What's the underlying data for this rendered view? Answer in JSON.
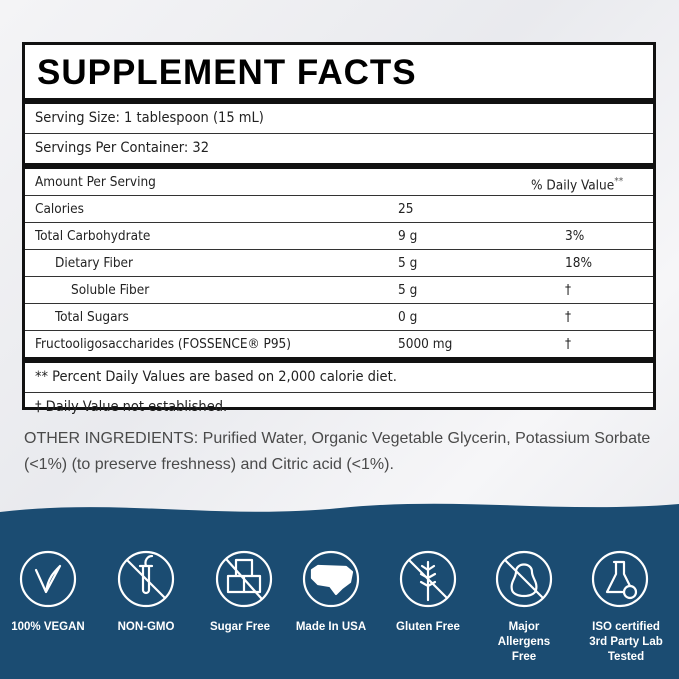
{
  "facts": {
    "title": "SUPPLEMENT FACTS",
    "serving_size": "Serving Size: 1 tablespoon (15 mL)",
    "servings_per_container": "Servings Per Container: 32",
    "amount_header": "Amount Per Serving",
    "dv_header": "% Daily Value",
    "dv_header_mark": "**",
    "rows": [
      {
        "name": "Calories",
        "amount": "25"
      },
      {
        "name": "Total Carbohydrate",
        "amount": "9 g",
        "dv": "3%"
      },
      {
        "name": "Dietary Fiber",
        "amount": "5 g",
        "dv": "18%"
      },
      {
        "name": "Soluble Fiber",
        "amount": "5 g",
        "dv": "†"
      },
      {
        "name": "Total Sugars",
        "amount": "0 g",
        "dv": "†"
      },
      {
        "name": "Fructooligosaccharides (FOSSENCE® P95)",
        "amount": "5000 mg",
        "dv": "†"
      }
    ],
    "footnotes": [
      "** Percent Daily Values are based on 2,000 calorie diet.",
      "† Daily Value not established."
    ]
  },
  "other_ingredients": "OTHER INGREDIENTS: Purified Water, Organic Vegetable Glycerin, Potassium Sorbate (<1%) (to preserve freshness) and Citric acid (<1%).",
  "badges": [
    "100% VEGAN",
    "NON-GMO",
    "Sugar Free",
    "Made In USA",
    "Gluten Free",
    "Major Allergens Free",
    "ISO certified 3rd Party Lab Tested"
  ]
}
